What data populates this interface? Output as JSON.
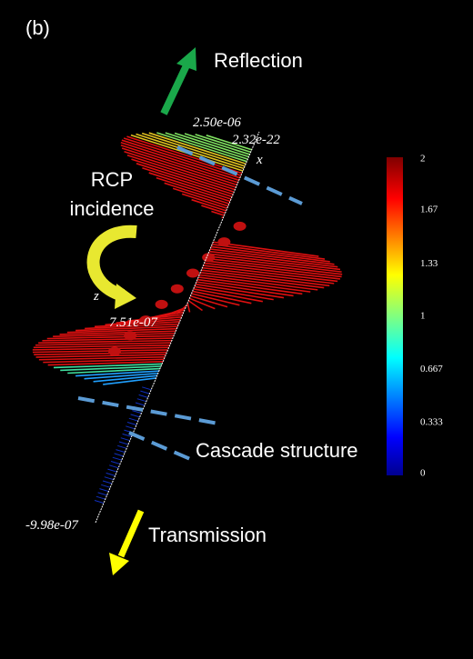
{
  "panel_label": "(b)",
  "labels": {
    "reflection": "Reflection",
    "incidence_line1": "RCP",
    "incidence_line2": "incidence",
    "cascade": "Cascade structure",
    "transmission": "Transmission"
  },
  "axis_labels": {
    "top": "2.50e-06",
    "origin": "2.32e-22",
    "x": "x",
    "z": "z",
    "middle": "7.51e-07",
    "bottom": "-9.98e-07"
  },
  "colorbar": {
    "range": [
      0,
      2
    ],
    "ticks": [
      2,
      1.67,
      1.33,
      1,
      0.667,
      0.333,
      0
    ]
  }
}
